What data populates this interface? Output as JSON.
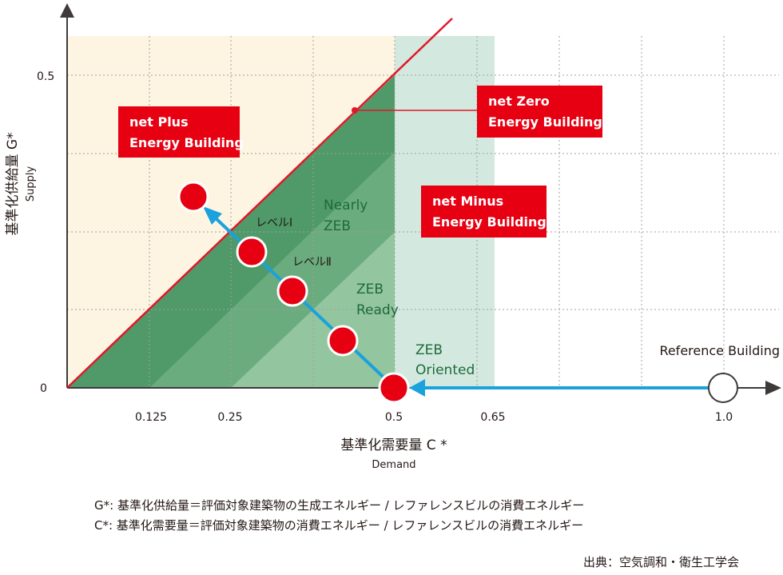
{
  "colors": {
    "cream": "#fdf5e2",
    "light_green": "#d3e9df",
    "zone_dark": "#4f9a68",
    "zone_mid": "#6aac7d",
    "zone_light": "#93c59f",
    "red": "#e60012",
    "line_red": "#e0182b",
    "arrow_blue": "#1ba2dc",
    "grid": "#9fa0a0",
    "zone_text": "#1d6b3a"
  },
  "axes": {
    "y_title": "基準化供給量 G*",
    "y_sub": "Supply",
    "x_title": "基準化需要量 C *",
    "x_sub": "Demand",
    "y_ticks": [
      "0",
      "0.5"
    ],
    "x_ticks": [
      "0.125",
      "0.25",
      "0.5",
      "0.65",
      "1.0"
    ]
  },
  "zones": {
    "nearly_zeb": [
      "Nearly",
      "ZEB"
    ],
    "zeb_ready": [
      "ZEB",
      "Ready"
    ],
    "zeb_oriented": [
      "ZEB",
      "Oriented"
    ]
  },
  "levels": {
    "level1": "レベルⅠ",
    "level2": "レベルⅡ"
  },
  "boxes": {
    "net_plus": [
      "net Plus",
      "Energy Building"
    ],
    "net_zero": [
      "net Zero",
      "Energy Building"
    ],
    "net_minus": [
      "net Minus",
      "Energy Building"
    ]
  },
  "reference_label": "Reference Building",
  "notes": [
    "G*: 基準化供給量＝評価対象建築物の生成エネルギー / レファレンスビルの消費エネルギー",
    "C*: 基準化需要量＝評価対象建築物の消費エネルギー / レファレンスビルの消費エネルギー"
  ],
  "source": "出典：空気調和・衛生工学会",
  "icons": [
    "circle-marker-icon",
    "arrow-icon"
  ]
}
